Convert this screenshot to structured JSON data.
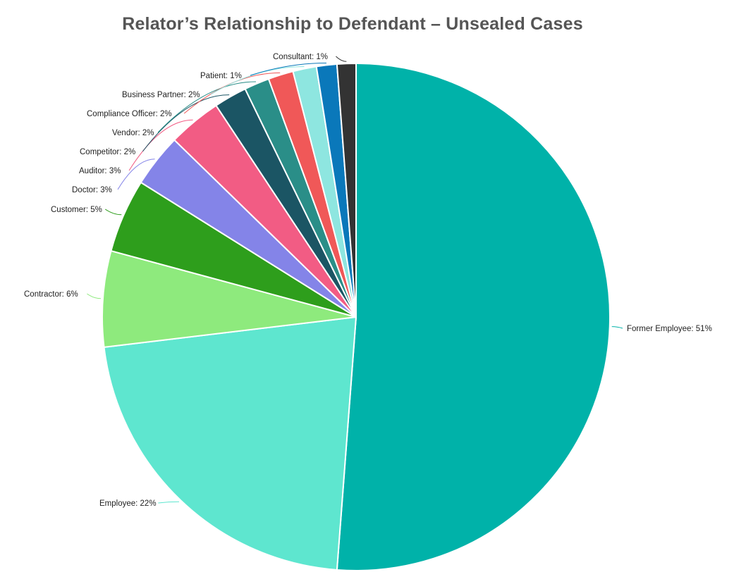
{
  "chart_data": {
    "type": "pie",
    "title": "Relator’s Relationship to Defendant – Unsealed Cases",
    "slices": [
      {
        "label": "Former Employee: 51%",
        "value": 51.2,
        "color": "#00b2a9"
      },
      {
        "label": "Employee: 22%",
        "value": 21.9,
        "color": "#5ee6cf"
      },
      {
        "label": "Contractor: 6%",
        "value": 6.1,
        "color": "#8eea7d"
      },
      {
        "label": "Customer: 5%",
        "value": 4.7,
        "color": "#2e9e1c"
      },
      {
        "label": "Doctor: 3%",
        "value": 3.4,
        "color": "#8484e8"
      },
      {
        "label": "Auditor: 3%",
        "value": 3.4,
        "color": "#f25c84"
      },
      {
        "label": "Competitor: 2%",
        "value": 2.1,
        "color": "#1b5564"
      },
      {
        "label": "Vendor: 2%",
        "value": 1.6,
        "color": "#2a8e88"
      },
      {
        "label": "Compliance Officer: 2%",
        "value": 1.6,
        "color": "#f05858"
      },
      {
        "label": "Business Partner: 2%",
        "value": 1.5,
        "color": "#8ee6e0"
      },
      {
        "label": "Patient: 1%",
        "value": 1.3,
        "color": "#0a78ba"
      },
      {
        "label": "Consultant: 1%",
        "value": 1.2,
        "color": "#333333"
      }
    ]
  }
}
